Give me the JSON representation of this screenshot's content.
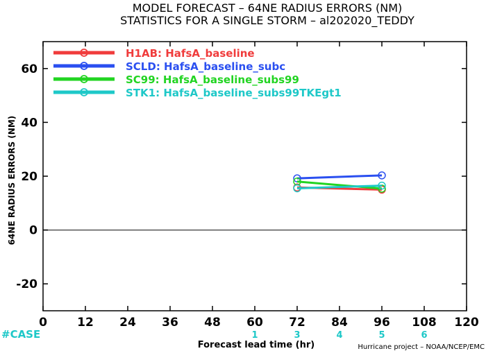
{
  "chart_data": {
    "type": "line",
    "title": "MODEL FORECAST – 64NE RADIUS ERRORS (NM)",
    "subtitle": "STATISTICS FOR A SINGLE STORM – al202020_TEDDY",
    "xlabel": "Forecast lead time (hr)",
    "ylabel": "64NE RADIUS ERRORS (NM)",
    "xlim": [
      0,
      120
    ],
    "ylim": [
      -30,
      70
    ],
    "x_ticks": [
      0,
      12,
      24,
      36,
      48,
      60,
      72,
      84,
      96,
      108,
      120
    ],
    "y_ticks": [
      -20,
      0,
      20,
      40,
      60
    ],
    "zero_line": true,
    "legend_position": "top-left",
    "series": [
      {
        "name": "H1AB: HafsA_baseline",
        "color": "#f03c3c",
        "x": [
          72,
          96
        ],
        "y": [
          15.8,
          15.0
        ]
      },
      {
        "name": "SCLD: HafsA_baseline_subc",
        "color": "#2a4ff0",
        "x": [
          72,
          96
        ],
        "y": [
          19.2,
          20.3
        ]
      },
      {
        "name": "SC99: HafsA_baseline_subs99",
        "color": "#22d422",
        "x": [
          72,
          96
        ],
        "y": [
          18.0,
          15.4
        ]
      },
      {
        "name": "STK1: HafsA_baseline_subs99TKEgt1",
        "color": "#1ec8c8",
        "x": [
          72,
          96
        ],
        "y": [
          15.5,
          16.5
        ]
      }
    ],
    "case_label": "#CASE",
    "case_counts": [
      {
        "x": 60,
        "n": "1"
      },
      {
        "x": 72,
        "n": "3"
      },
      {
        "x": 84,
        "n": "4"
      },
      {
        "x": 96,
        "n": "5"
      },
      {
        "x": 108,
        "n": "6"
      }
    ],
    "case_color": "#1ec8c8",
    "credit": "Hurricane project – NOAA/NCEP/EMC"
  }
}
